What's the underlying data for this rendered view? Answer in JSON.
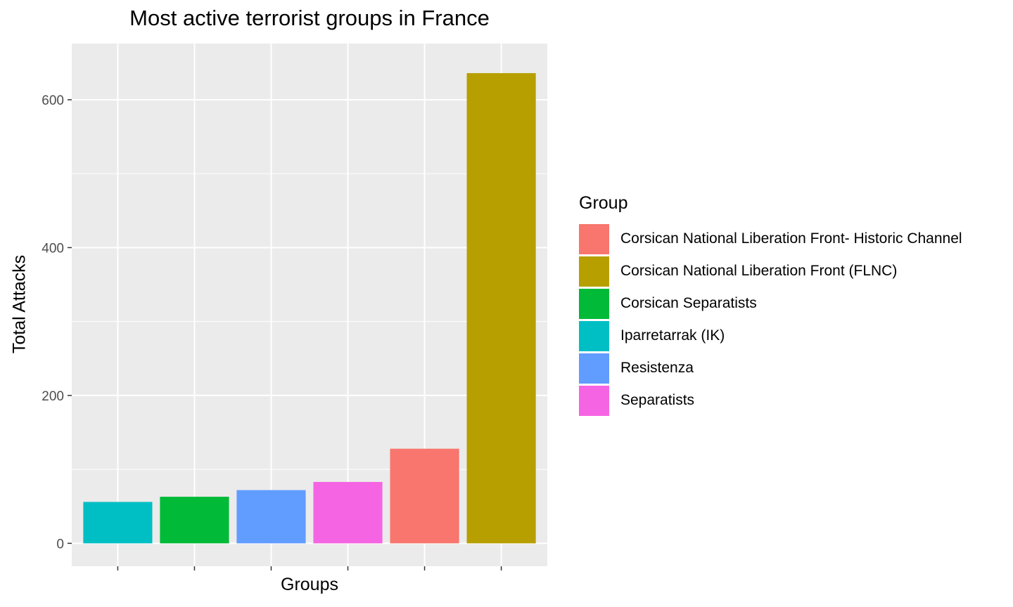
{
  "chart_data": {
    "type": "bar",
    "title": "Most active terrorist groups in France",
    "xlabel": "Groups",
    "ylabel": "Total Attacks",
    "ylim": [
      -31,
      676
    ],
    "y_ticks": [
      0,
      200,
      400,
      600
    ],
    "grid": true,
    "legend_position": "right",
    "legend_title": "Group",
    "legend": [
      {
        "name": "Corsican National Liberation Front- Historic Channel",
        "color": "#F8766D"
      },
      {
        "name": "Corsican National Liberation Front (FLNC)",
        "color": "#B79F00"
      },
      {
        "name": "Corsican Separatists",
        "color": "#00BA38"
      },
      {
        "name": "Iparretarrak (IK)",
        "color": "#00BFC4"
      },
      {
        "name": "Resistenza",
        "color": "#619CFF"
      },
      {
        "name": "Separatists",
        "color": "#F564E3"
      }
    ],
    "bars": [
      {
        "group": "Iparretarrak (IK)",
        "value": 56,
        "color": "#00BFC4"
      },
      {
        "group": "Corsican Separatists",
        "value": 63,
        "color": "#00BA38"
      },
      {
        "group": "Resistenza",
        "value": 72,
        "color": "#619CFF"
      },
      {
        "group": "Separatists",
        "value": 83,
        "color": "#F564E3"
      },
      {
        "group": "Corsican National Liberation Front- Historic Channel",
        "value": 128,
        "color": "#F8766D"
      },
      {
        "group": "Corsican National Liberation Front (FLNC)",
        "value": 636,
        "color": "#B79F00"
      }
    ]
  }
}
